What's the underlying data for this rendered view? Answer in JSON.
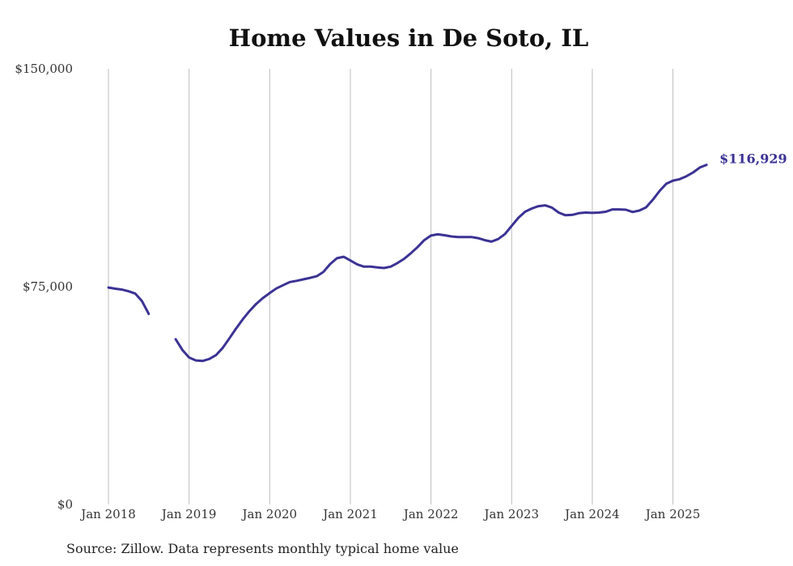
{
  "chart_data": {
    "type": "line",
    "title": "Home Values in De Soto, IL",
    "xlabel": "",
    "ylabel": "",
    "ylim": [
      0,
      150000
    ],
    "y_ticks": [
      "$0",
      "$75,000",
      "$150,000"
    ],
    "y_tick_values": [
      0,
      75000,
      150000
    ],
    "x_ticks": [
      "Jan 2018",
      "Jan 2019",
      "Jan 2020",
      "Jan 2021",
      "Jan 2022",
      "Jan 2023",
      "Jan 2024",
      "Jan 2025"
    ],
    "grid": "vertical",
    "legend": "none",
    "end_label": "$116,929",
    "line_color": "#3b3294",
    "series": [
      {
        "start": "Jan 2018",
        "values": [
          74700,
          74300,
          74000,
          73400,
          72600,
          70000,
          65600,
          null,
          null,
          null,
          56900,
          53200,
          50600,
          49600,
          49400,
          50100,
          51400,
          53900,
          57200,
          60600,
          63800,
          66600,
          69100,
          71100,
          72800,
          74400,
          75500,
          76600,
          77000,
          77500,
          78000,
          78600,
          80100,
          82800,
          84800,
          85300,
          84000,
          82700,
          81900,
          81900,
          81600,
          81400,
          81900,
          83100,
          84600,
          86500,
          88600,
          91000,
          92600,
          93000,
          92700,
          92300,
          92100,
          92100,
          92100,
          91700,
          91000,
          90500,
          91400,
          93100,
          95900,
          98700,
          100800,
          101900,
          102700,
          103000,
          102200,
          100500,
          99600,
          99700,
          100300,
          100500,
          100400,
          100500,
          100800,
          101600,
          101600,
          101500,
          100700,
          101200,
          102300,
          104900,
          107900,
          110400,
          111500,
          112000,
          113000,
          114300,
          116000,
          116929
        ]
      }
    ]
  },
  "source": "Source: Zillow. Data represents monthly typical home value"
}
